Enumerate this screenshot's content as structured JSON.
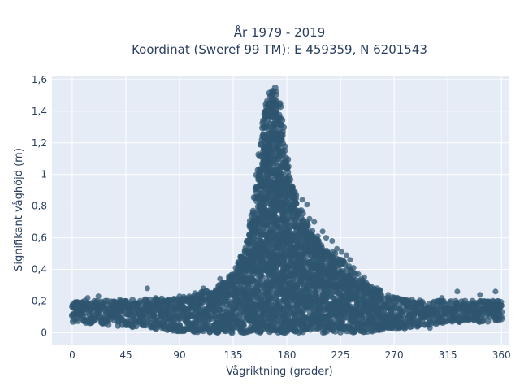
{
  "chart_data": {
    "type": "scatter",
    "title": "År 1979 - 2019",
    "subtitle": "Koordinat (Sweref 99 TM): E 459359, N 6201543",
    "xlabel": "Vågriktning (grader)",
    "ylabel": "Signifikant våghöjd (m)",
    "xlim": [
      -17,
      366
    ],
    "ylim": [
      -0.075,
      1.625
    ],
    "x_ticks": [
      0,
      45,
      90,
      135,
      180,
      225,
      270,
      315,
      360
    ],
    "y_ticks": [
      0,
      0.2,
      0.4,
      0.6,
      0.8,
      1,
      1.2,
      1.4,
      1.6
    ],
    "y_tick_labels": [
      "0",
      "0,2",
      "0,4",
      "0,6",
      "0,8",
      "1",
      "1,2",
      "1,4",
      "1,6"
    ],
    "grid": true,
    "legend": "none",
    "marker_color": "#2f5670",
    "background_color": "#e5ecf6",
    "series": [
      {
        "envelope_upper": [
          [
            0,
            0.2
          ],
          [
            30,
            0.2
          ],
          [
            60,
            0.21
          ],
          [
            90,
            0.22
          ],
          [
            120,
            0.28
          ],
          [
            135,
            0.38
          ],
          [
            145,
            0.55
          ],
          [
            152,
            0.8
          ],
          [
            158,
            1.2
          ],
          [
            162,
            1.45
          ],
          [
            166,
            1.55
          ],
          [
            170,
            1.55
          ],
          [
            174,
            1.45
          ],
          [
            178,
            1.25
          ],
          [
            182,
            1.0
          ],
          [
            188,
            0.85
          ],
          [
            195,
            0.72
          ],
          [
            205,
            0.6
          ],
          [
            220,
            0.5
          ],
          [
            235,
            0.4
          ],
          [
            250,
            0.3
          ],
          [
            270,
            0.22
          ],
          [
            300,
            0.2
          ],
          [
            330,
            0.2
          ],
          [
            360,
            0.2
          ]
        ],
        "envelope_lower": [
          [
            0,
            0.07
          ],
          [
            30,
            0.05
          ],
          [
            60,
            0.03
          ],
          [
            90,
            0.01
          ],
          [
            120,
            0.0
          ],
          [
            180,
            0.0
          ],
          [
            240,
            0.0
          ],
          [
            270,
            0.02
          ],
          [
            300,
            0.05
          ],
          [
            330,
            0.07
          ],
          [
            360,
            0.07
          ]
        ],
        "outliers": [
          [
            13,
            0.22
          ],
          [
            22,
            0.23
          ],
          [
            40,
            0.21
          ],
          [
            63,
            0.28
          ],
          [
            70,
            0.22
          ],
          [
            90,
            0.23
          ],
          [
            103,
            0.25
          ],
          [
            110,
            0.28
          ],
          [
            115,
            0.25
          ],
          [
            124,
            0.34
          ],
          [
            128,
            0.31
          ],
          [
            131,
            0.32
          ],
          [
            134,
            0.35
          ],
          [
            137,
            0.41
          ],
          [
            140,
            0.38
          ],
          [
            145,
            0.46
          ],
          [
            149,
            0.51
          ],
          [
            151,
            0.7
          ],
          [
            153,
            0.71
          ],
          [
            157,
            0.55
          ],
          [
            159,
            0.62
          ],
          [
            157,
            0.8
          ],
          [
            148,
            0.4
          ],
          [
            142,
            0.44
          ],
          [
            155,
            0.92
          ],
          [
            193,
            0.84
          ],
          [
            197,
            0.81
          ],
          [
            199,
            0.72
          ],
          [
            203,
            0.7
          ],
          [
            206,
            0.61
          ],
          [
            213,
            0.6
          ],
          [
            218,
            0.58
          ],
          [
            222,
            0.53
          ],
          [
            226,
            0.51
          ],
          [
            230,
            0.49
          ],
          [
            233,
            0.46
          ],
          [
            236,
            0.41
          ],
          [
            240,
            0.37
          ],
          [
            245,
            0.35
          ],
          [
            245,
            0.31
          ],
          [
            251,
            0.29
          ],
          [
            258,
            0.27
          ],
          [
            265,
            0.24
          ],
          [
            285,
            0.21
          ],
          [
            310,
            0.22
          ],
          [
            323,
            0.26
          ],
          [
            342,
            0.24
          ],
          [
            355,
            0.26
          ],
          [
            188,
            0.87
          ],
          [
            196,
            0.68
          ],
          [
            210,
            0.64
          ],
          [
            228,
            0.45
          ],
          [
            241,
            0.33
          ],
          [
            110,
            0.03
          ],
          [
            205,
            0.02
          ],
          [
            235,
            0.01
          ],
          [
            300,
            0.03
          ],
          [
            260,
            0.04
          ]
        ]
      }
    ]
  }
}
